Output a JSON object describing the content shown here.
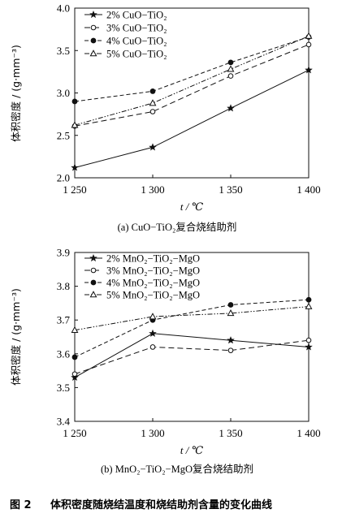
{
  "chart_data": [
    {
      "type": "line",
      "x": [
        1250,
        1300,
        1350,
        1400
      ],
      "xticks": [
        "1 250",
        "1 300",
        "1 350",
        "1 400"
      ],
      "ylim": [
        2.0,
        4.0
      ],
      "yticks": [
        "2.0",
        "2.5",
        "3.0",
        "3.5",
        "4.0"
      ],
      "ylabel": "体积密度 / (g·mm⁻³)",
      "xlabel": "t / ℃",
      "caption": "(a)  CuO−TiO₂复合烧结助剂",
      "legend_position": "top-left",
      "series": [
        {
          "name": "2% CuO−TiO₂",
          "values": [
            2.12,
            2.36,
            2.82,
            3.27
          ],
          "marker": "star",
          "dash": "solid"
        },
        {
          "name": "3% CuO−TiO₂",
          "values": [
            2.61,
            2.78,
            3.2,
            3.57
          ],
          "marker": "circle-open",
          "dash": "longdash"
        },
        {
          "name": "4% CuO−TiO₂",
          "values": [
            2.9,
            3.02,
            3.36,
            3.66
          ],
          "marker": "circle-filled",
          "dash": "dash"
        },
        {
          "name": "5% CuO−TiO₂",
          "values": [
            2.62,
            2.88,
            3.28,
            3.67
          ],
          "marker": "triangle-open",
          "dash": "dashdotdot"
        }
      ]
    },
    {
      "type": "line",
      "x": [
        1250,
        1300,
        1350,
        1400
      ],
      "xticks": [
        "1 250",
        "1 300",
        "1 350",
        "1 400"
      ],
      "ylim": [
        3.4,
        3.9
      ],
      "yticks": [
        "3.4",
        "3.5",
        "3.6",
        "3.7",
        "3.8",
        "3.9"
      ],
      "ylabel": "体积密度 / (g·mm⁻³)",
      "xlabel": "t / ℃",
      "caption": "(b)  MnO₂−TiO₂−MgO复合烧结助剂",
      "legend_position": "top-left",
      "series": [
        {
          "name": "2% MnO₂−TiO₂−MgO",
          "values": [
            3.53,
            3.66,
            3.64,
            3.62
          ],
          "marker": "star",
          "dash": "solid"
        },
        {
          "name": "3% MnO₂−TiO₂−MgO",
          "values": [
            3.54,
            3.62,
            3.61,
            3.64
          ],
          "marker": "circle-open",
          "dash": "longdash"
        },
        {
          "name": "4% MnO₂−TiO₂−MgO",
          "values": [
            3.59,
            3.7,
            3.745,
            3.76
          ],
          "marker": "circle-filled",
          "dash": "dash"
        },
        {
          "name": "5% MnO₂−TiO₂−MgO",
          "values": [
            3.67,
            3.71,
            3.72,
            3.74
          ],
          "marker": "triangle-open",
          "dash": "dashdotdot"
        }
      ]
    }
  ],
  "figure_caption": {
    "label": "图 2",
    "text": "体积密度随烧结温度和烧结助剂含量的变化曲线"
  }
}
